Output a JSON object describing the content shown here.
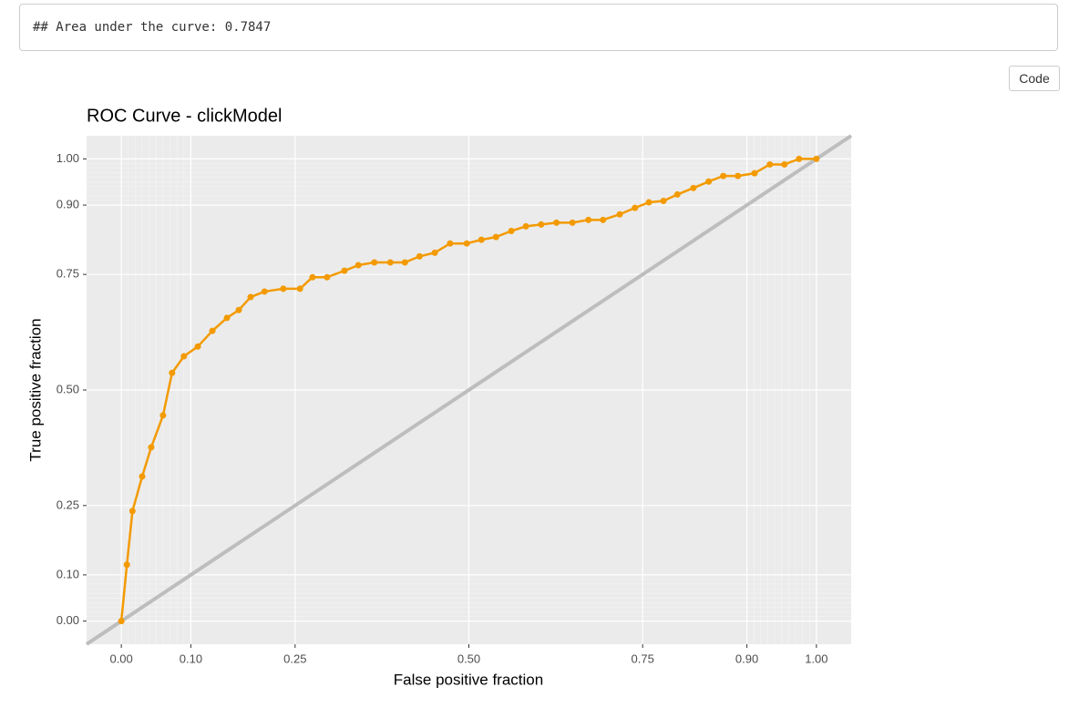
{
  "output_text": "## Area under the curve: 0.7847",
  "code_button": "Code",
  "chart_data": {
    "type": "line",
    "title": "ROC Curve - clickModel",
    "x_label": "False positive fraction",
    "y_label": "True positive fraction",
    "xlim": [
      -0.05,
      1.05
    ],
    "ylim": [
      -0.05,
      1.05
    ],
    "xticks": [
      {
        "value": 0,
        "label": "0.00"
      },
      {
        "value": 0.1,
        "label": "0.10"
      },
      {
        "value": 0.25,
        "label": "0.25"
      },
      {
        "value": 0.5,
        "label": "0.50"
      },
      {
        "value": 0.75,
        "label": "0.75"
      },
      {
        "value": 0.9,
        "label": "0.90"
      },
      {
        "value": 1,
        "label": "1.00"
      }
    ],
    "yticks": [
      {
        "value": 0,
        "label": "0.00"
      },
      {
        "value": 0.1,
        "label": "0.10"
      },
      {
        "value": 0.25,
        "label": "0.25"
      },
      {
        "value": 0.5,
        "label": "0.50"
      },
      {
        "value": 0.75,
        "label": "0.75"
      },
      {
        "value": 0.9,
        "label": "0.90"
      },
      {
        "value": 1,
        "label": "1.00"
      }
    ],
    "minor_ticks": [
      0.01,
      0.02,
      0.03,
      0.04,
      0.05,
      0.06,
      0.07,
      0.08,
      0.09,
      0.91,
      0.92,
      0.93,
      0.94,
      0.95,
      0.96,
      0.97,
      0.98,
      0.99
    ],
    "grid": true,
    "reference_color": "#bdbdbd",
    "x": [
      0,
      0.008,
      0.016,
      0.03,
      0.043,
      0.06,
      0.073,
      0.09,
      0.11,
      0.131,
      0.152,
      0.169,
      0.186,
      0.206,
      0.233,
      0.257,
      0.275,
      0.296,
      0.321,
      0.341,
      0.364,
      0.387,
      0.408,
      0.429,
      0.451,
      0.473,
      0.497,
      0.518,
      0.539,
      0.561,
      0.582,
      0.604,
      0.626,
      0.649,
      0.672,
      0.693,
      0.717,
      0.739,
      0.759,
      0.78,
      0.8,
      0.823,
      0.845,
      0.866,
      0.887,
      0.911,
      0.933,
      0.954,
      0.975,
      1
    ],
    "series": [
      {
        "color": "#f39a00",
        "values": [
          0,
          0.122,
          0.238,
          0.313,
          0.376,
          0.445,
          0.537,
          0.573,
          0.594,
          0.628,
          0.656,
          0.673,
          0.701,
          0.713,
          0.719,
          0.719,
          0.744,
          0.744,
          0.758,
          0.77,
          0.776,
          0.776,
          0.776,
          0.789,
          0.797,
          0.817,
          0.817,
          0.825,
          0.831,
          0.844,
          0.854,
          0.858,
          0.862,
          0.862,
          0.868,
          0.868,
          0.88,
          0.894,
          0.906,
          0.909,
          0.923,
          0.937,
          0.951,
          0.963,
          0.963,
          0.969,
          0.988,
          0.988,
          1,
          1
        ]
      }
    ]
  }
}
